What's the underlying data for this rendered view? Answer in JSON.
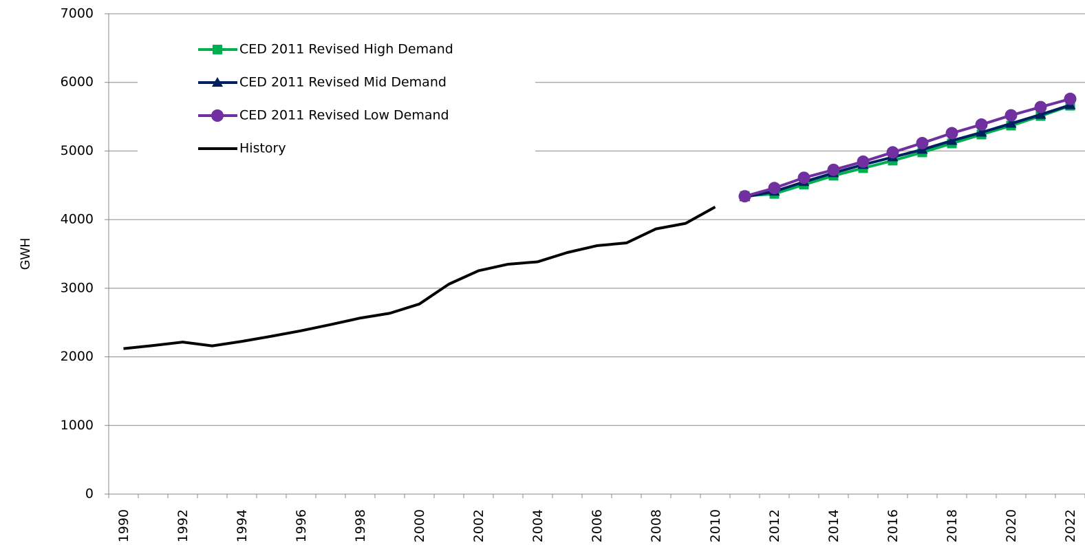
{
  "chart_data": {
    "type": "line",
    "ylabel": "GWH",
    "categories": [
      "1990",
      null,
      "1992",
      null,
      "1994",
      null,
      "1996",
      null,
      "1998",
      null,
      "2000",
      null,
      "2002",
      null,
      "2004",
      null,
      "2006",
      null,
      "2008",
      null,
      "2010",
      null,
      "2012",
      null,
      "2014",
      null,
      "2016",
      null,
      "2018",
      null,
      "2020",
      null,
      "2022"
    ],
    "ylim": [
      0,
      7000
    ],
    "yticks": [
      0,
      1000,
      2000,
      3000,
      4000,
      5000,
      6000,
      7000
    ],
    "grid": true,
    "legend": "upper left",
    "series": [
      {
        "name": "CED 2011 Revised High Demand",
        "color": "#00b050",
        "marker": "square",
        "values": [
          null,
          null,
          null,
          null,
          null,
          null,
          null,
          null,
          null,
          null,
          null,
          null,
          null,
          null,
          null,
          null,
          null,
          null,
          null,
          null,
          null,
          4345,
          4375,
          4510,
          4640,
          4750,
          4860,
          4980,
          5110,
          5240,
          5370,
          5510,
          5660
        ]
      },
      {
        "name": "CED 2011 Revised Mid Demand",
        "color": "#002060",
        "marker": "triangle",
        "values": [
          null,
          null,
          null,
          null,
          null,
          null,
          null,
          null,
          null,
          null,
          null,
          null,
          null,
          null,
          null,
          null,
          null,
          null,
          null,
          null,
          null,
          4330,
          4410,
          4550,
          4680,
          4800,
          4910,
          5020,
          5150,
          5270,
          5400,
          5530,
          5670
        ]
      },
      {
        "name": "CED 2011 Revised Low Demand",
        "color": "#7030a0",
        "marker": "circle",
        "values": [
          null,
          null,
          null,
          null,
          null,
          null,
          null,
          null,
          null,
          null,
          null,
          null,
          null,
          null,
          null,
          null,
          null,
          null,
          null,
          null,
          null,
          4340,
          4460,
          4610,
          4725,
          4845,
          4980,
          5115,
          5260,
          5385,
          5520,
          5640,
          5760
        ]
      },
      {
        "name": "History",
        "color": "#000000",
        "marker": null,
        "values": [
          2120,
          2165,
          2215,
          2160,
          2225,
          2300,
          2380,
          2470,
          2565,
          2635,
          2770,
          3060,
          3255,
          3350,
          3385,
          3520,
          3620,
          3660,
          3865,
          3945,
          4185,
          null,
          null,
          null,
          null,
          null,
          null,
          null,
          null,
          null,
          null,
          null,
          null
        ]
      }
    ]
  }
}
